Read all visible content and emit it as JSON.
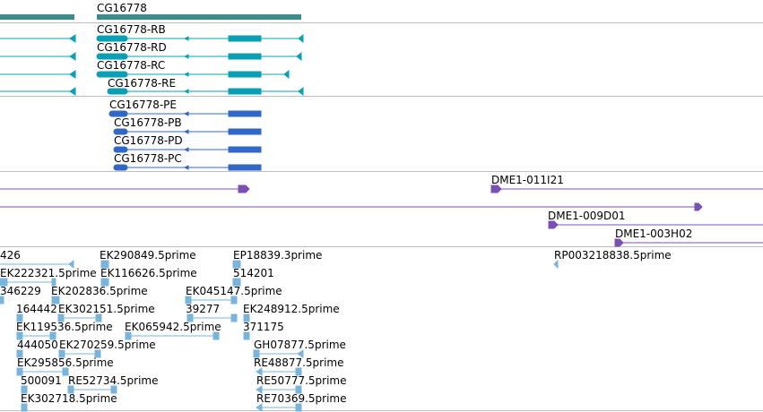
{
  "colors": {
    "gene": "#3c8c8c",
    "transcript_cds": "#0aa0b4",
    "protein": "#2f68c8",
    "clone": "#7a50b4",
    "est": "#78b4dc",
    "separator": "#bdbdbd"
  },
  "gene": {
    "name": "CG16778"
  },
  "transcripts": [
    {
      "name": "CG16778-RB"
    },
    {
      "name": "CG16778-RD"
    },
    {
      "name": "CG16778-RC"
    },
    {
      "name": "CG16778-RE"
    }
  ],
  "proteins": [
    {
      "name": "CG16778-PE"
    },
    {
      "name": "CG16778-PB"
    },
    {
      "name": "CG16778-PD"
    },
    {
      "name": "CG16778-PC"
    }
  ],
  "clones": [
    {
      "name": "DME1-011I21"
    },
    {
      "name": "DME1-009D01"
    },
    {
      "name": "DME1-003H02"
    }
  ],
  "ests": [
    {
      "name": "426"
    },
    {
      "name": "EK290849.5prime"
    },
    {
      "name": "EP18839.3prime"
    },
    {
      "name": "RP003218838.5prime"
    },
    {
      "name": "EK222321.5prime"
    },
    {
      "name": "EK116626.5prime"
    },
    {
      "name": "514201"
    },
    {
      "name": "346229"
    },
    {
      "name": "EK202836.5prime"
    },
    {
      "name": "EK045147.5prime"
    },
    {
      "name": "164442"
    },
    {
      "name": "EK302151.5prime"
    },
    {
      "name": "39277"
    },
    {
      "name": "EK248912.5prime"
    },
    {
      "name": "EK119536.5prime"
    },
    {
      "name": "EK065942.5prime"
    },
    {
      "name": "371175"
    },
    {
      "name": "444050"
    },
    {
      "name": "EK270259.5prime"
    },
    {
      "name": "GH07877.5prime"
    },
    {
      "name": "EK295856.5prime"
    },
    {
      "name": "RE48877.5prime"
    },
    {
      "name": "500091"
    },
    {
      "name": "RE52734.5prime"
    },
    {
      "name": "RE50777.5prime"
    },
    {
      "name": "EK302718.5prime"
    },
    {
      "name": "RE70369.5prime"
    }
  ]
}
